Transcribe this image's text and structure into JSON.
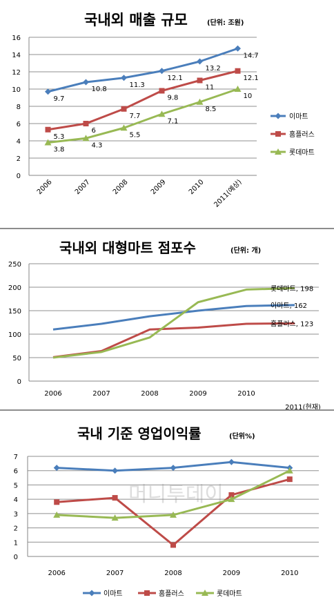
{
  "charts": [
    {
      "title": "국내외 매출 규모",
      "subtitle": "(단위: 조원)",
      "chart_data": {
        "type": "line",
        "categories": [
          "2006",
          "2007",
          "2008",
          "2009",
          "2010",
          "2011(예상)"
        ],
        "ylim": [
          0,
          16
        ],
        "yticks": [
          "0",
          "2",
          "4",
          "6",
          "8",
          "10",
          "12",
          "14",
          "16"
        ],
        "legend": "right",
        "series": [
          {
            "name": "이마트",
            "values": [
              9.7,
              10.8,
              11.3,
              12.1,
              13.2,
              14.7
            ],
            "labels": [
              "9.7",
              "10.8",
              "11.3",
              "12.1",
              "13.2",
              "14.7"
            ],
            "color": "#4a7ebb",
            "marker": "diamond"
          },
          {
            "name": "홈플러스",
            "values": [
              5.3,
              6,
              7.7,
              9.8,
              11,
              12.1
            ],
            "labels": [
              "5.3",
              "6",
              "7.7",
              "9.8",
              "11",
              "12.1"
            ],
            "color": "#be4b48",
            "marker": "square"
          },
          {
            "name": "롯데마트",
            "values": [
              3.8,
              4.3,
              5.5,
              7.1,
              8.5,
              10
            ],
            "labels": [
              "3.8",
              "4.3",
              "5.5",
              "7.1",
              "8.5",
              "10"
            ],
            "color": "#98b954",
            "marker": "triangle"
          }
        ]
      }
    },
    {
      "title": "국내외 대형마트 점포수",
      "subtitle": "(단위: 개)",
      "chart_data": {
        "type": "line",
        "categories": [
          "2006",
          "2007",
          "2008",
          "2009",
          "2010",
          "2011(현재)"
        ],
        "ylim": [
          0,
          250
        ],
        "yticks": [
          "0",
          "50",
          "100",
          "150",
          "200",
          "250"
        ],
        "legend": "none",
        "series": [
          {
            "name": "이마트",
            "values": [
              110,
              122,
              138,
              150,
              160,
              162
            ],
            "color": "#4a7ebb",
            "endlabel": "이마트, 162"
          },
          {
            "name": "홈플러스",
            "values": [
              51,
              64,
              110,
              114,
              122,
              123
            ],
            "color": "#be4b48",
            "endlabel": "홈플러스, 123"
          },
          {
            "name": "롯데마트",
            "values": [
              50,
              62,
              93,
              168,
              195,
              198
            ],
            "color": "#98b954",
            "endlabel": "롯데마트, 198"
          }
        ]
      }
    },
    {
      "title": "국내 기준 영업이익률",
      "subtitle": "(단위%)",
      "watermark": "머니투데이",
      "chart_data": {
        "type": "line",
        "categories": [
          "2006",
          "2007",
          "2008",
          "2009",
          "2010"
        ],
        "ylim": [
          0,
          7
        ],
        "yticks": [
          "0",
          "1",
          "2",
          "3",
          "4",
          "5",
          "6",
          "7"
        ],
        "legend": "bottom",
        "series": [
          {
            "name": "이마트",
            "values": [
              6.2,
              6.0,
              6.2,
              6.6,
              6.2
            ],
            "color": "#4a7ebb",
            "marker": "diamond"
          },
          {
            "name": "홈플러스",
            "values": [
              3.8,
              4.1,
              0.8,
              4.3,
              5.4
            ],
            "color": "#be4b48",
            "marker": "square"
          },
          {
            "name": "롯데마트",
            "values": [
              2.9,
              2.7,
              2.9,
              4.0,
              6.0
            ],
            "color": "#98b954",
            "marker": "triangle"
          }
        ]
      }
    }
  ]
}
